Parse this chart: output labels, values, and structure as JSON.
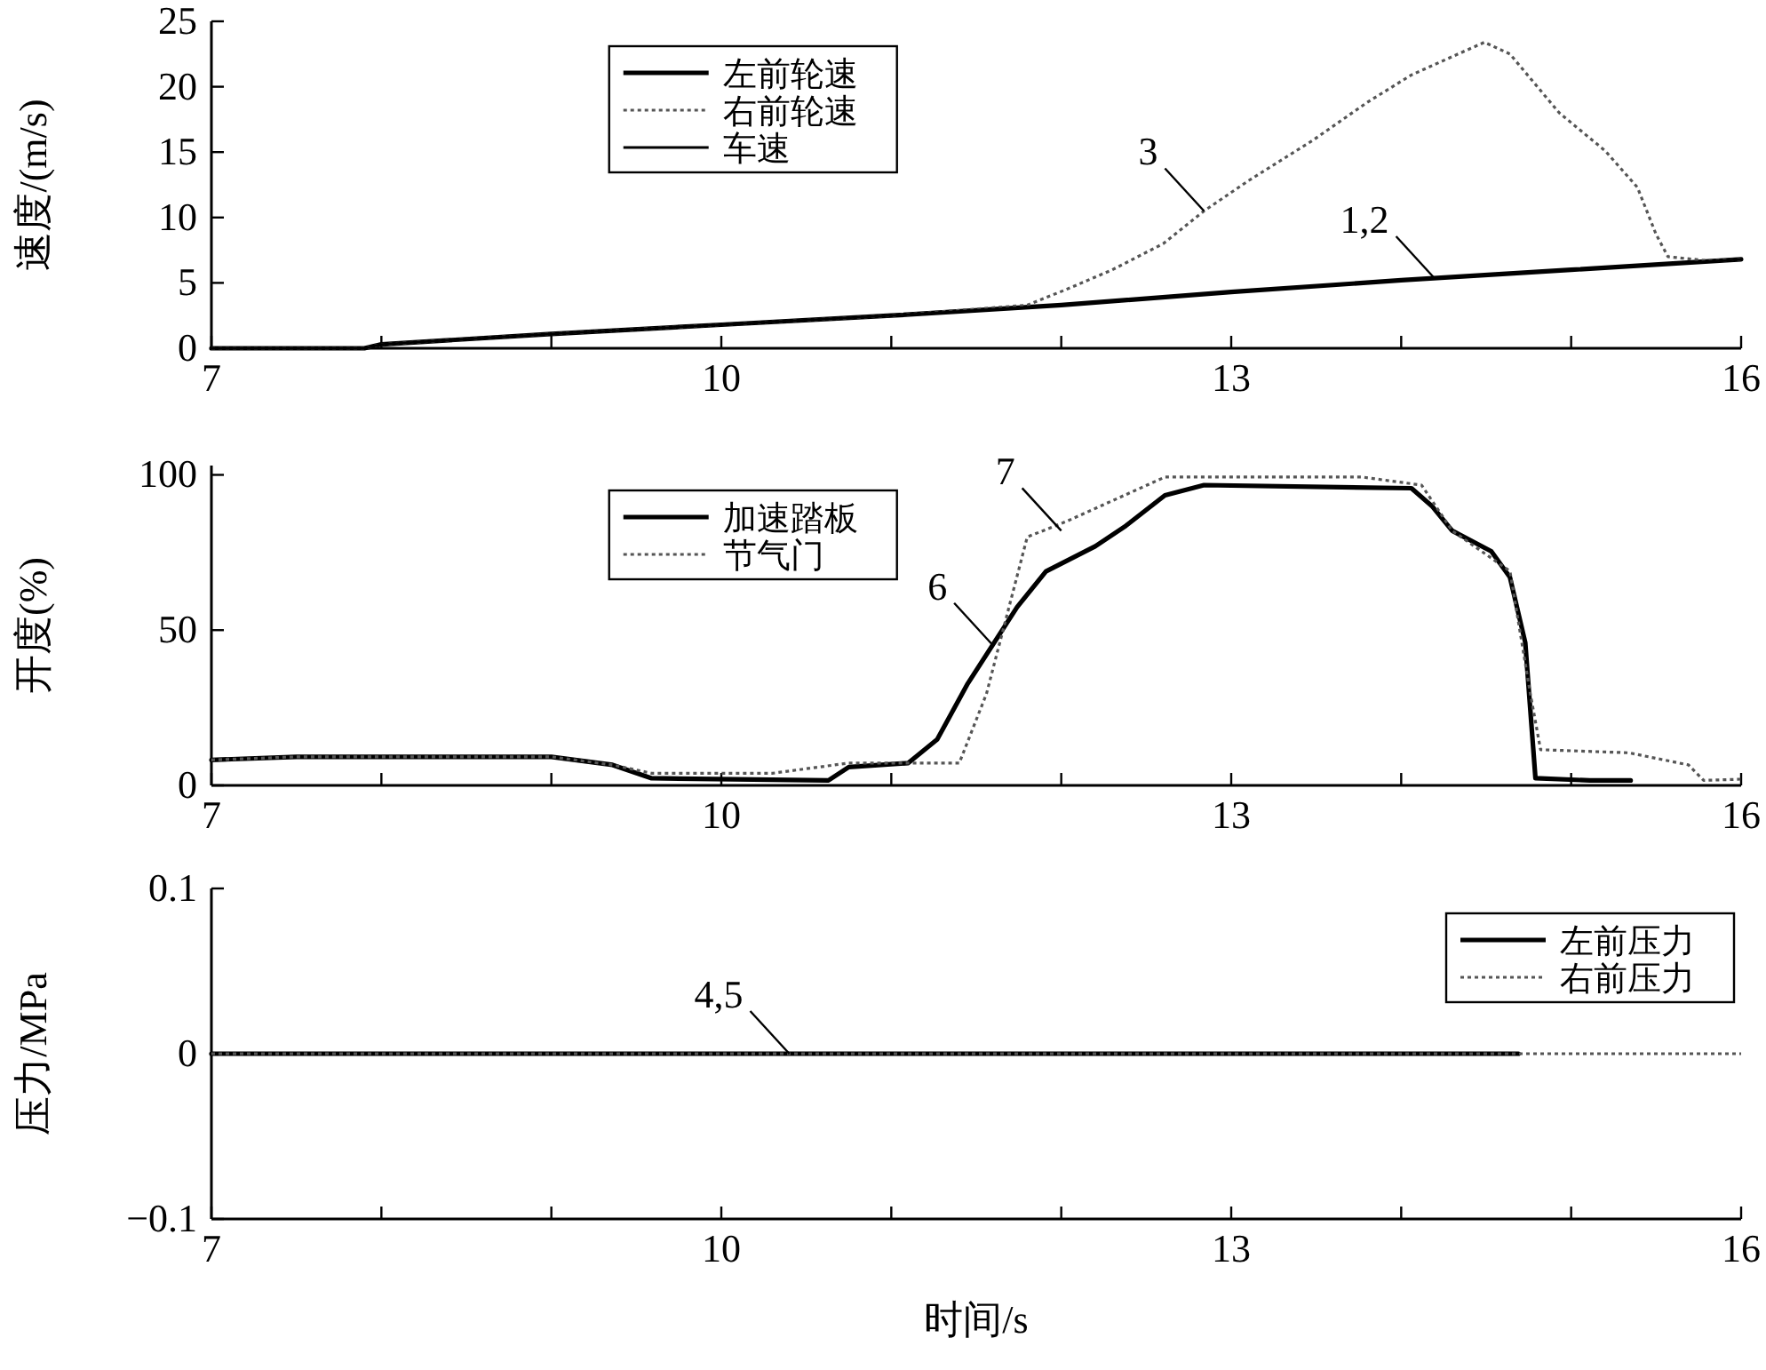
{
  "chart_data": [
    {
      "type": "line",
      "ylabel": "速度/(m/s)",
      "xlim": [
        7,
        16
      ],
      "ylim": [
        0,
        25
      ],
      "xticks": [
        7,
        {
          "value": 8,
          "label": null
        },
        {
          "value": 9,
          "label": null
        },
        10,
        {
          "value": 11,
          "label": null
        },
        {
          "value": 12,
          "label": null
        },
        13,
        {
          "value": 14,
          "label": null
        },
        {
          "value": 15,
          "label": null
        },
        16
      ],
      "yticks": [
        0,
        5,
        10,
        15,
        20,
        25
      ],
      "legend": "top left",
      "grid": false,
      "series": [
        {
          "name": "左前轮速",
          "color": "#000000",
          "line_style": "solid",
          "x": [
            7,
            7.9,
            8,
            9,
            10,
            11,
            12,
            13,
            14,
            15,
            16
          ],
          "values": [
            0,
            0,
            0.3,
            1.1,
            1.8,
            2.5,
            3.3,
            4.3,
            5.2,
            6.0,
            6.8
          ]
        },
        {
          "name": "右前轮速",
          "color": "#555555",
          "line_style": "dotted",
          "x": [
            7,
            7.9,
            8,
            9,
            10,
            11,
            11.8,
            12.03,
            12.3,
            12.6,
            12.84,
            13.1,
            13.48,
            13.8,
            14.06,
            14.3,
            14.49,
            14.64,
            14.93,
            15.2,
            15.39,
            15.5,
            15.57,
            15.8,
            16
          ],
          "values": [
            0,
            0,
            0.3,
            1.1,
            1.8,
            2.5,
            3.3,
            4.5,
            6.0,
            8.0,
            10.5,
            12.8,
            15.9,
            18.8,
            20.9,
            22.3,
            23.4,
            22.5,
            18,
            15.1,
            12.3,
            8.7,
            7.0,
            6.7,
            6.8
          ]
        },
        {
          "name": "车速",
          "color": "#000000",
          "line_style": "solid",
          "x": [
            7,
            7.9,
            8,
            9,
            10,
            11,
            12,
            13,
            14,
            15,
            16
          ],
          "values": [
            0,
            0,
            0.3,
            1.1,
            1.8,
            2.5,
            3.3,
            4.3,
            5.2,
            6.0,
            6.8
          ]
        }
      ],
      "annotations": [
        {
          "text": "3",
          "x": 12.84,
          "y": 10.5
        },
        {
          "text": "1,2",
          "x": 14.2,
          "y": 5.3
        }
      ]
    },
    {
      "type": "line",
      "ylabel": "开度(%)",
      "xlim": [
        7,
        16
      ],
      "ylim": [
        0,
        103
      ],
      "xticks": [
        7,
        {
          "value": 8,
          "label": null
        },
        {
          "value": 9,
          "label": null
        },
        10,
        {
          "value": 11,
          "label": null
        },
        {
          "value": 12,
          "label": null
        },
        13,
        {
          "value": 14,
          "label": null
        },
        {
          "value": 15,
          "label": null
        },
        16
      ],
      "yticks": [
        0,
        50,
        100
      ],
      "legend": "top left",
      "grid": false,
      "series": [
        {
          "name": "加速踏板",
          "color": "#000000",
          "line_style": "solid",
          "x": [
            7,
            7.5,
            9.0,
            9.36,
            9.59,
            10.63,
            10.75,
            11.1,
            11.27,
            11.45,
            11.74,
            11.91,
            12.2,
            12.38,
            12.61,
            12.84,
            14.06,
            14.18,
            14.3,
            14.53,
            14.64,
            14.73,
            14.79,
            15.11,
            15.35
          ],
          "values": [
            8.2,
            9.2,
            9.2,
            6.6,
            2.3,
            1.6,
            5.9,
            7.2,
            14.8,
            32.8,
            57.4,
            68.9,
            77,
            83.6,
            93.4,
            96.7,
            95.7,
            90,
            82,
            75.4,
            67,
            46,
            2.3,
            1.6,
            1.6
          ]
        },
        {
          "name": "节气门",
          "color": "#555555",
          "line_style": "dotted",
          "x": [
            7,
            7.5,
            9.0,
            9.36,
            9.59,
            10.3,
            10.75,
            11.4,
            11.56,
            11.8,
            12.03,
            12.61,
            13.77,
            14.12,
            14.3,
            14.64,
            14.76,
            14.82,
            15.34,
            15.69,
            15.78,
            16
          ],
          "values": [
            8.2,
            9.2,
            9.2,
            6.6,
            3.9,
            3.9,
            7.2,
            7.2,
            29.5,
            80,
            85,
            99.3,
            99.3,
            96.7,
            82,
            69,
            29.5,
            11.5,
            10.5,
            6.6,
            1.6,
            2
          ]
        }
      ],
      "annotations": [
        {
          "text": "6",
          "x": 11.6,
          "y": 45
        },
        {
          "text": "7",
          "x": 12.0,
          "y": 82
        }
      ]
    },
    {
      "type": "line",
      "ylabel": "压力/MPa",
      "xlabel": "时间/s",
      "xlim": [
        7,
        16
      ],
      "ylim": [
        -0.1,
        0.1
      ],
      "xticks": [
        7,
        {
          "value": 8,
          "label": null
        },
        {
          "value": 9,
          "label": null
        },
        10,
        {
          "value": 11,
          "label": null
        },
        {
          "value": 12,
          "label": null
        },
        13,
        {
          "value": 14,
          "label": null
        },
        {
          "value": 15,
          "label": null
        },
        16
      ],
      "yticks": [
        {
          "value": -0.1,
          "label": "−0.1"
        },
        0,
        0.1
      ],
      "legend": "top right",
      "grid": false,
      "series": [
        {
          "name": "左前压力",
          "color": "#000000",
          "line_style": "solid",
          "x": [
            7,
            14.69
          ],
          "values": [
            0,
            0
          ]
        },
        {
          "name": "右前压力",
          "color": "#555555",
          "line_style": "dotted",
          "x": [
            7,
            16
          ],
          "values": [
            0,
            0
          ]
        }
      ],
      "annotations": [
        {
          "text": "4,5",
          "x": 10.4,
          "y": 0
        }
      ]
    }
  ]
}
